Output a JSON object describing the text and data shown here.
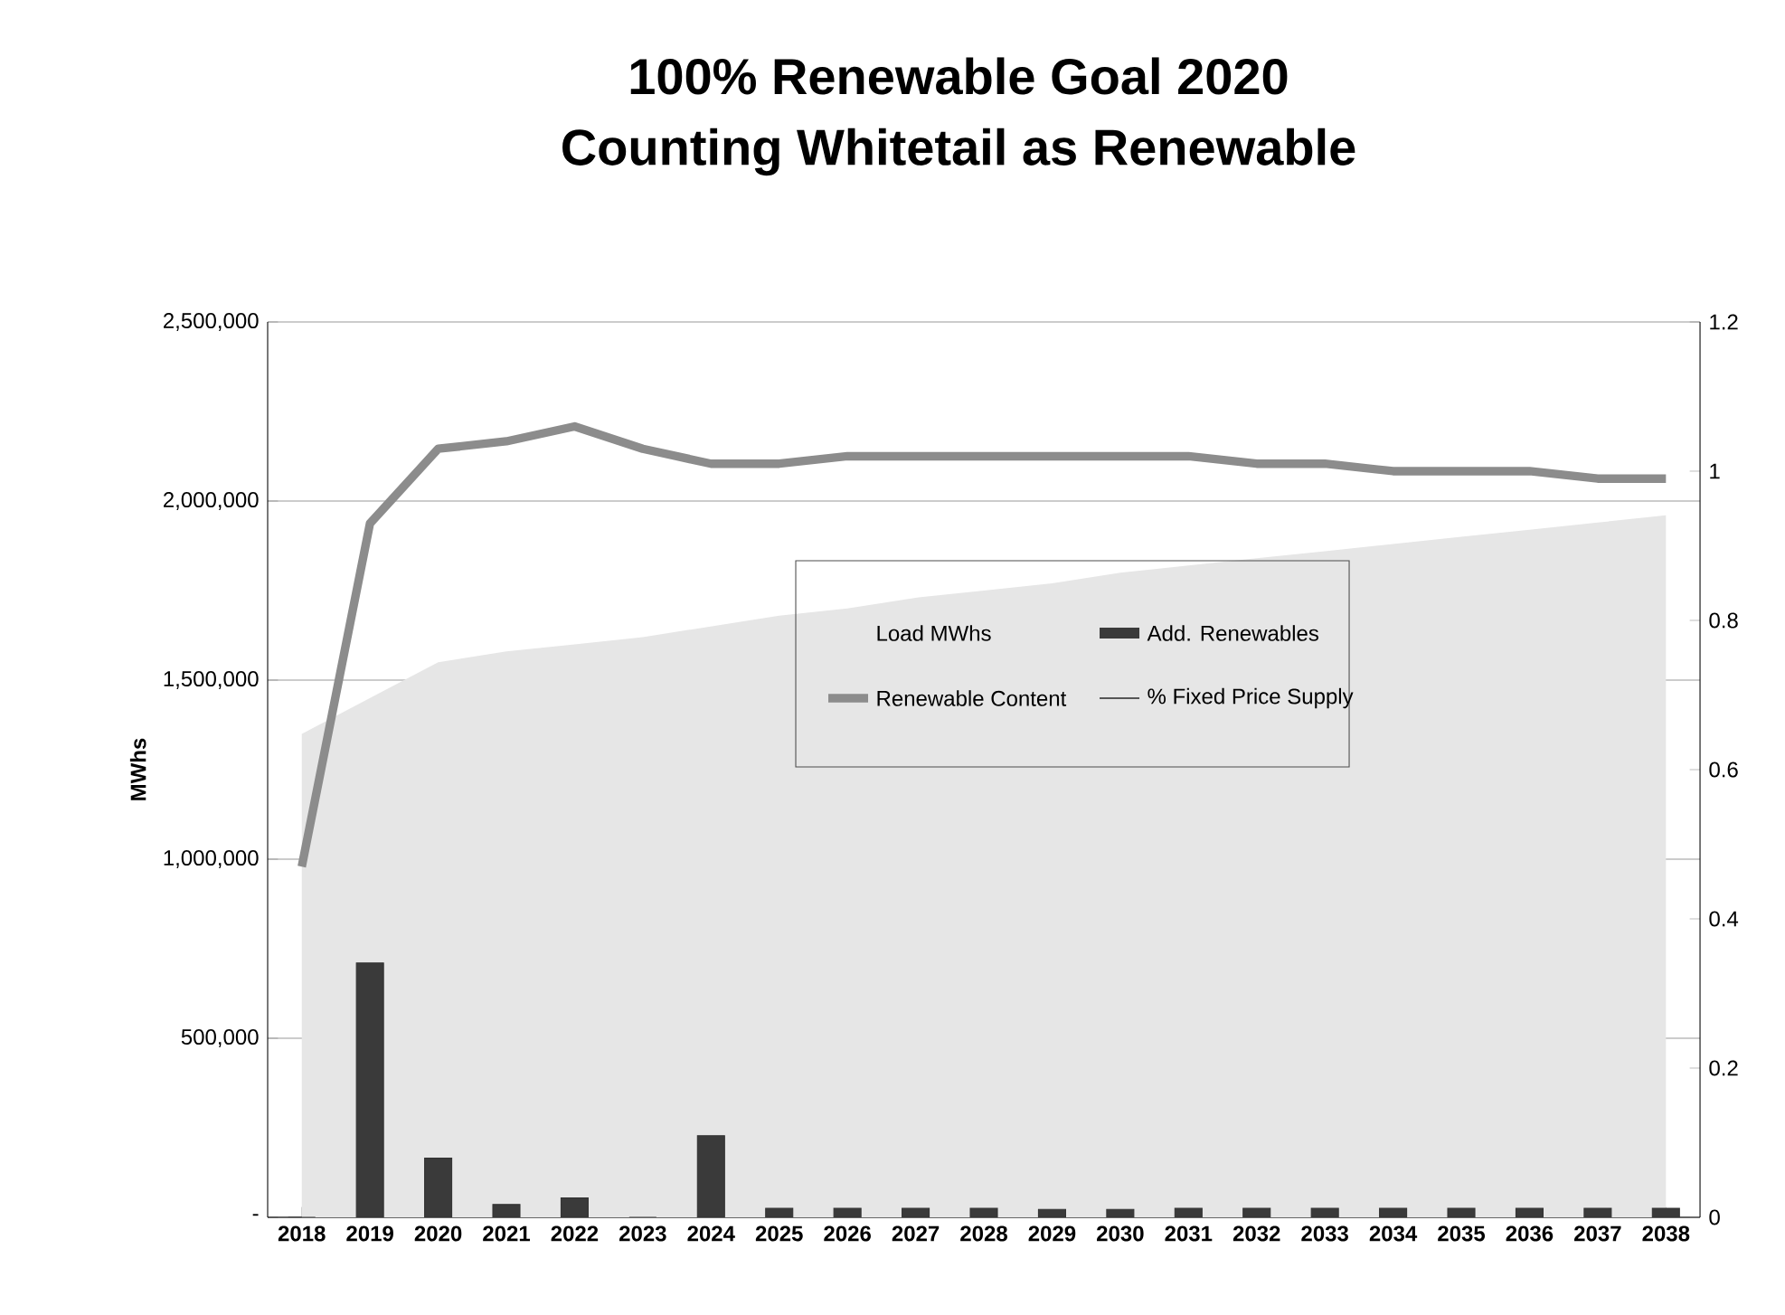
{
  "chart_data": {
    "type": "bar",
    "title": "100% Renewable Goal 2020",
    "subtitle": "Counting Whitetail as Renewable",
    "ylabel": "MWhs",
    "categories": [
      "2018",
      "2019",
      "2020",
      "2021",
      "2022",
      "2023",
      "2024",
      "2025",
      "2026",
      "2027",
      "2028",
      "2029",
      "2030",
      "2031",
      "2032",
      "2033",
      "2034",
      "2035",
      "2036",
      "2037",
      "2038"
    ],
    "series": [
      {
        "name": "Load MWhs",
        "type": "area",
        "color": "#e6e6e6",
        "values": [
          1350000,
          1450000,
          1550000,
          1580000,
          1600000,
          1620000,
          1650000,
          1680000,
          1700000,
          1730000,
          1750000,
          1770000,
          1800000,
          1820000,
          1840000,
          1860000,
          1880000,
          1900000,
          1920000,
          1940000,
          1960000
        ]
      },
      {
        "name": "Add. Renewables",
        "color": "#3a3a3a",
        "values": [
          0,
          710000,
          165000,
          36000,
          54000,
          0,
          228000,
          25000,
          25000,
          25000,
          25000,
          22000,
          22000,
          25000,
          25000,
          25000,
          25000,
          25000,
          25000,
          25000,
          25000
        ]
      },
      {
        "name": "Renewable Content",
        "type": "line",
        "axis": "y2",
        "color": "#8c8c8c",
        "values": [
          0.47,
          0.93,
          1.03,
          1.04,
          1.06,
          1.03,
          1.01,
          1.01,
          1.02,
          1.02,
          1.02,
          1.02,
          1.02,
          1.02,
          1.01,
          1.01,
          1.0,
          1.0,
          1.0,
          0.99,
          0.99
        ]
      },
      {
        "name": "% Fixed Price Supply",
        "type": "line",
        "axis": "y2",
        "color": "#555555",
        "values": [
          null,
          null,
          null,
          null,
          null,
          null,
          null,
          null,
          null,
          null,
          null,
          null,
          null,
          null,
          null,
          null,
          null,
          null,
          null,
          null,
          null
        ]
      }
    ],
    "ylim": [
      0,
      2500000
    ],
    "yticks": [
      {
        "value": 0,
        "label": "-"
      },
      {
        "value": 500000,
        "label": "500,000"
      },
      {
        "value": 1000000,
        "label": "1,000,000"
      },
      {
        "value": 1500000,
        "label": "1,500,000"
      },
      {
        "value": 2000000,
        "label": "2,000,000"
      },
      {
        "value": 2500000,
        "label": "2,500,000"
      }
    ],
    "y2lim": [
      0,
      1.2
    ],
    "y2ticks": [
      0,
      0.2,
      0.4,
      0.6,
      0.8,
      1,
      1.2
    ],
    "grid": "y",
    "legend": "center"
  }
}
